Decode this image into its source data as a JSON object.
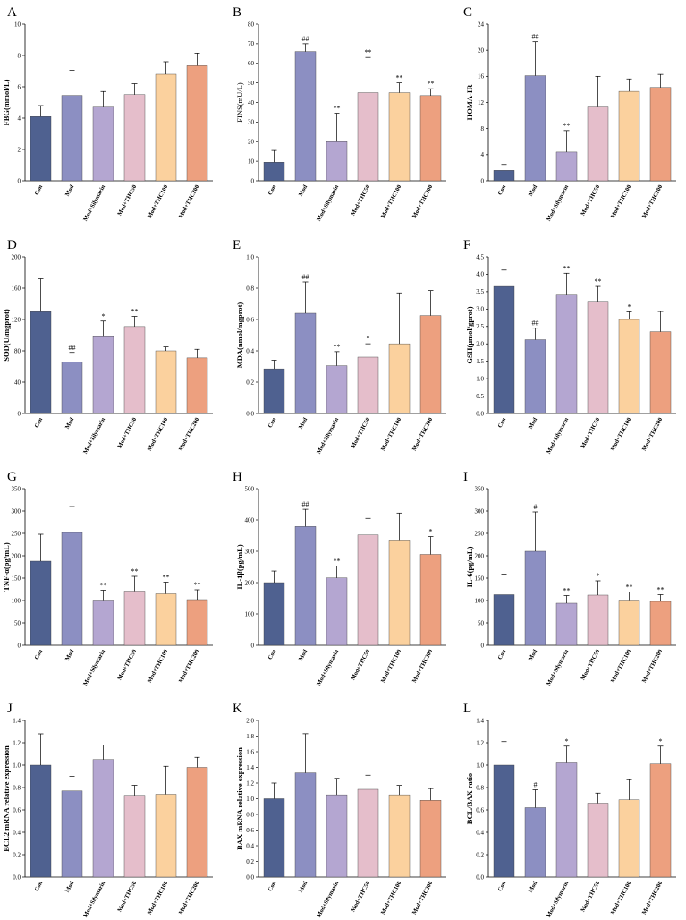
{
  "figure": {
    "categories": [
      "Con",
      "Mod",
      "Mod+Silymarin",
      "Mod+THC50",
      "Mod+THC100",
      "Mod+THC200"
    ],
    "colors": [
      "#4F6190",
      "#8C8FC2",
      "#B4A6D1",
      "#E5BECB",
      "#FBD19E",
      "#EDA07F"
    ]
  },
  "chart_data": [
    {
      "letter": "A",
      "type": "bar",
      "ylabel": "FBG(mmol/L)",
      "ylim": [
        0,
        10
      ],
      "ticks": [
        "0",
        "2",
        "4",
        "6",
        "8",
        "10"
      ],
      "values": [
        4.1,
        5.45,
        4.7,
        5.5,
        6.8,
        7.35
      ],
      "errors": [
        0.7,
        1.6,
        1.0,
        0.7,
        0.8,
        0.8
      ],
      "sig": [
        "",
        "",
        "",
        "",
        "",
        ""
      ]
    },
    {
      "letter": "B",
      "type": "bar",
      "ylabel": "FINS(mU/L)",
      "ylim": [
        0,
        80
      ],
      "ticks": [
        "0",
        "10",
        "20",
        "30",
        "40",
        "50",
        "60",
        "70",
        "80"
      ],
      "values": [
        9.5,
        66,
        20,
        45,
        45,
        43.5
      ],
      "errors": [
        6,
        4,
        14.5,
        18,
        5,
        3.5
      ],
      "sig": [
        "",
        "##",
        "**",
        "**",
        "**",
        "**"
      ]
    },
    {
      "letter": "C",
      "type": "bar",
      "ylabel": "HOMA-IR",
      "ylim": [
        0,
        24
      ],
      "ticks": [
        "0",
        "4",
        "8",
        "12",
        "16",
        "20",
        "24"
      ],
      "values": [
        1.6,
        16.1,
        4.4,
        11.3,
        13.7,
        14.3
      ],
      "errors": [
        0.9,
        5.2,
        3.3,
        4.7,
        1.9,
        2.0
      ],
      "sig": [
        "",
        "##",
        "**",
        "",
        "",
        ""
      ]
    },
    {
      "letter": "D",
      "type": "bar",
      "ylabel": "SOD(U/mgprot)",
      "ylim": [
        0,
        200
      ],
      "ticks": [
        "0",
        "40",
        "80",
        "120",
        "160",
        "200"
      ],
      "values": [
        130,
        66,
        98,
        111,
        80,
        71
      ],
      "errors": [
        42,
        12,
        20,
        13,
        5,
        11
      ],
      "sig": [
        "",
        "##",
        "*",
        "**",
        "",
        ""
      ]
    },
    {
      "letter": "E",
      "type": "bar",
      "ylabel": "MDA(nmol/mgprot)",
      "ylim": [
        0,
        1.0
      ],
      "ticks": [
        "0.0",
        "0.2",
        "0.4",
        "0.6",
        "0.8",
        "1.0"
      ],
      "values": [
        0.285,
        0.64,
        0.305,
        0.36,
        0.445,
        0.625
      ],
      "errors": [
        0.055,
        0.2,
        0.09,
        0.085,
        0.325,
        0.16
      ],
      "sig": [
        "",
        "##",
        "**",
        "*",
        "",
        ""
      ]
    },
    {
      "letter": "F",
      "type": "bar",
      "ylabel": "GSH(μmol/gprot)",
      "ylim": [
        0,
        4.5
      ],
      "ticks": [
        "0.0",
        "0.5",
        "1.0",
        "1.5",
        "2.0",
        "2.5",
        "3.0",
        "3.5",
        "4.0",
        "4.5"
      ],
      "values": [
        3.65,
        2.12,
        3.4,
        3.22,
        2.7,
        2.35
      ],
      "errors": [
        0.47,
        0.33,
        0.63,
        0.43,
        0.22,
        0.58
      ],
      "sig": [
        "",
        "##",
        "**",
        "**",
        "*",
        ""
      ]
    },
    {
      "letter": "G",
      "type": "bar",
      "ylabel": "TNF-α(pg/mL)",
      "ylim": [
        0,
        350
      ],
      "ticks": [
        "0",
        "50",
        "100",
        "150",
        "200",
        "250",
        "300",
        "350"
      ],
      "values": [
        188,
        252,
        101,
        121,
        115,
        102
      ],
      "errors": [
        60,
        58,
        22,
        33,
        26,
        22
      ],
      "sig": [
        "",
        "",
        "**",
        "**",
        "**",
        "**"
      ]
    },
    {
      "letter": "H",
      "type": "bar",
      "ylabel": "IL-1β(pg/mL)",
      "ylim": [
        0,
        500
      ],
      "ticks": [
        "0",
        "100",
        "200",
        "300",
        "400",
        "500"
      ],
      "values": [
        200,
        379,
        215,
        352,
        336,
        290
      ],
      "errors": [
        37,
        55,
        38,
        53,
        86,
        57
      ],
      "sig": [
        "",
        "##",
        "**",
        "",
        "",
        "*"
      ]
    },
    {
      "letter": "I",
      "type": "bar",
      "ylabel": "IL-6(pg/mL)",
      "ylim": [
        0,
        350
      ],
      "ticks": [
        "0",
        "50",
        "100",
        "150",
        "200",
        "250",
        "300",
        "350"
      ],
      "values": [
        113,
        210,
        94,
        112,
        101,
        98
      ],
      "errors": [
        46,
        88,
        17,
        32,
        18,
        15
      ],
      "sig": [
        "",
        "#",
        "**",
        "*",
        "**",
        "**"
      ]
    },
    {
      "letter": "J",
      "type": "bar",
      "ylabel": "BCL2 mRNA relative expression",
      "ylim": [
        0,
        1.4
      ],
      "ticks": [
        "0.0",
        "0.2",
        "0.4",
        "0.6",
        "0.8",
        "1.0",
        "1.2",
        "1.4"
      ],
      "values": [
        1.0,
        0.77,
        1.05,
        0.73,
        0.74,
        0.98
      ],
      "errors": [
        0.28,
        0.13,
        0.13,
        0.09,
        0.25,
        0.09
      ],
      "sig": [
        "",
        "",
        "",
        "",
        "",
        ""
      ]
    },
    {
      "letter": "K",
      "type": "bar",
      "ylabel": "BAX mRNA relative expression",
      "ylim": [
        0,
        2.0
      ],
      "ticks": [
        "0.0",
        "0.2",
        "0.4",
        "0.6",
        "0.8",
        "1.0",
        "1.2",
        "1.4",
        "1.6",
        "1.8",
        "2.0"
      ],
      "values": [
        1.0,
        1.33,
        1.05,
        1.12,
        1.05,
        0.98
      ],
      "errors": [
        0.2,
        0.5,
        0.21,
        0.18,
        0.12,
        0.15
      ],
      "sig": [
        "",
        "",
        "",
        "",
        "",
        ""
      ]
    },
    {
      "letter": "L",
      "type": "bar",
      "ylabel": "BCL/BAX ratio",
      "ylim": [
        0,
        1.4
      ],
      "ticks": [
        "0.0",
        "0.2",
        "0.4",
        "0.6",
        "0.8",
        "1.0",
        "1.2",
        "1.4"
      ],
      "values": [
        1.0,
        0.62,
        1.02,
        0.66,
        0.69,
        1.01
      ],
      "errors": [
        0.21,
        0.16,
        0.15,
        0.09,
        0.18,
        0.16
      ],
      "sig": [
        "",
        "#",
        "*",
        "",
        "",
        "*"
      ]
    }
  ]
}
